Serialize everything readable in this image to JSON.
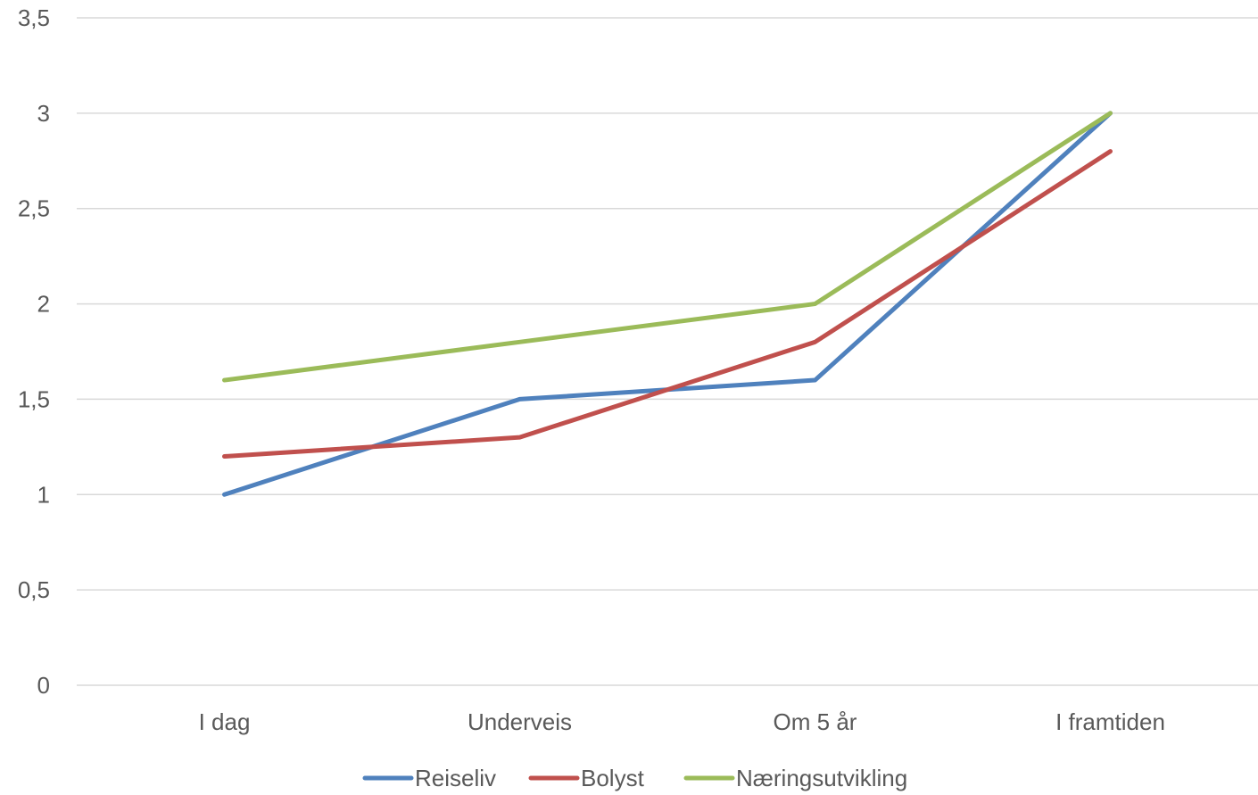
{
  "chart_data": {
    "type": "line",
    "categories": [
      "I dag",
      "Underveis",
      "Om 5 år",
      "I framtiden"
    ],
    "series": [
      {
        "name": "Reiseliv",
        "values": [
          1.0,
          1.5,
          1.6,
          3.0
        ],
        "color": "#4f81bd"
      },
      {
        "name": "Bolyst",
        "values": [
          1.2,
          1.3,
          1.8,
          2.8
        ],
        "color": "#c0504d"
      },
      {
        "name": "Næringsutvikling",
        "values": [
          1.6,
          1.8,
          2.0,
          3.0
        ],
        "color": "#9bbb59"
      }
    ],
    "y_ticks": [
      "0",
      "0,5",
      "1",
      "1,5",
      "2",
      "2,5",
      "3",
      "3,5"
    ],
    "y_tick_values": [
      0,
      0.5,
      1,
      1.5,
      2,
      2.5,
      3,
      3.5
    ],
    "ylim": [
      0,
      3.5
    ],
    "grid": true,
    "legend": "bottom"
  }
}
